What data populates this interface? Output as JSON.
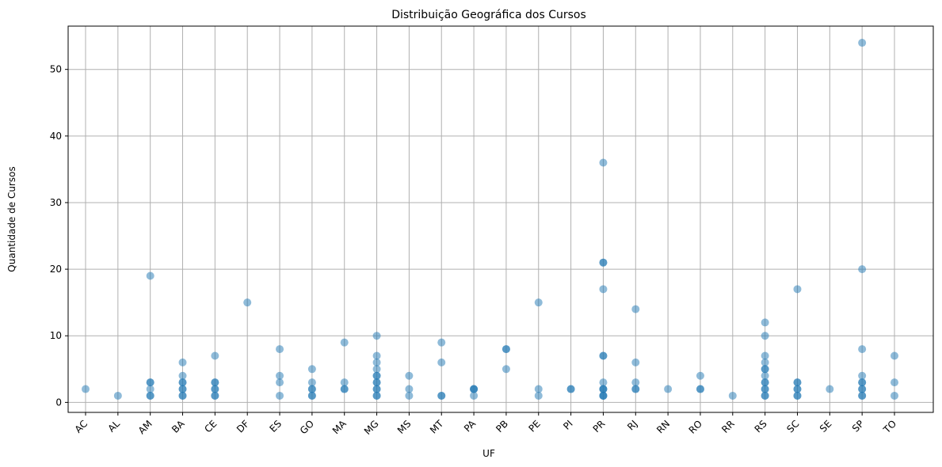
{
  "chart_data": {
    "type": "scatter",
    "title": "Distribuição Geográfica dos Cursos",
    "xlabel": "UF",
    "ylabel": "Quantidade de Cursos",
    "categories": [
      "AC",
      "AL",
      "AM",
      "BA",
      "CE",
      "DF",
      "ES",
      "GO",
      "MA",
      "MG",
      "MS",
      "MT",
      "PA",
      "PB",
      "PE",
      "PI",
      "PR",
      "RJ",
      "RN",
      "RO",
      "RR",
      "RS",
      "SC",
      "SE",
      "SP",
      "TO"
    ],
    "ylim": [
      -1.5,
      56.5
    ],
    "yticks": [
      0,
      10,
      20,
      30,
      40,
      50
    ],
    "grid": true,
    "marker_color": "#1f77b4",
    "marker_alpha": 0.5,
    "points": [
      {
        "x": "AC",
        "y": 2
      },
      {
        "x": "AL",
        "y": 1
      },
      {
        "x": "AM",
        "y": 19
      },
      {
        "x": "AM",
        "y": 3
      },
      {
        "x": "AM",
        "y": 3
      },
      {
        "x": "AM",
        "y": 2
      },
      {
        "x": "AM",
        "y": 1
      },
      {
        "x": "AM",
        "y": 1
      },
      {
        "x": "BA",
        "y": 6
      },
      {
        "x": "BA",
        "y": 4
      },
      {
        "x": "BA",
        "y": 3
      },
      {
        "x": "BA",
        "y": 3
      },
      {
        "x": "BA",
        "y": 2
      },
      {
        "x": "BA",
        "y": 2
      },
      {
        "x": "BA",
        "y": 1
      },
      {
        "x": "BA",
        "y": 1
      },
      {
        "x": "CE",
        "y": 7
      },
      {
        "x": "CE",
        "y": 3
      },
      {
        "x": "CE",
        "y": 3
      },
      {
        "x": "CE",
        "y": 2
      },
      {
        "x": "CE",
        "y": 2
      },
      {
        "x": "CE",
        "y": 1
      },
      {
        "x": "CE",
        "y": 1
      },
      {
        "x": "DF",
        "y": 15
      },
      {
        "x": "ES",
        "y": 8
      },
      {
        "x": "ES",
        "y": 4
      },
      {
        "x": "ES",
        "y": 3
      },
      {
        "x": "ES",
        "y": 1
      },
      {
        "x": "GO",
        "y": 5
      },
      {
        "x": "GO",
        "y": 3
      },
      {
        "x": "GO",
        "y": 2
      },
      {
        "x": "GO",
        "y": 2
      },
      {
        "x": "GO",
        "y": 1
      },
      {
        "x": "GO",
        "y": 1
      },
      {
        "x": "MA",
        "y": 9
      },
      {
        "x": "MA",
        "y": 3
      },
      {
        "x": "MA",
        "y": 2
      },
      {
        "x": "MA",
        "y": 2
      },
      {
        "x": "MG",
        "y": 10
      },
      {
        "x": "MG",
        "y": 7
      },
      {
        "x": "MG",
        "y": 6
      },
      {
        "x": "MG",
        "y": 5
      },
      {
        "x": "MG",
        "y": 4
      },
      {
        "x": "MG",
        "y": 4
      },
      {
        "x": "MG",
        "y": 3
      },
      {
        "x": "MG",
        "y": 3
      },
      {
        "x": "MG",
        "y": 2
      },
      {
        "x": "MG",
        "y": 2
      },
      {
        "x": "MG",
        "y": 1
      },
      {
        "x": "MG",
        "y": 1
      },
      {
        "x": "MS",
        "y": 4
      },
      {
        "x": "MS",
        "y": 2
      },
      {
        "x": "MS",
        "y": 1
      },
      {
        "x": "MT",
        "y": 9
      },
      {
        "x": "MT",
        "y": 6
      },
      {
        "x": "MT",
        "y": 1
      },
      {
        "x": "MT",
        "y": 1
      },
      {
        "x": "PA",
        "y": 2
      },
      {
        "x": "PA",
        "y": 2
      },
      {
        "x": "PA",
        "y": 2
      },
      {
        "x": "PA",
        "y": 1
      },
      {
        "x": "PB",
        "y": 8
      },
      {
        "x": "PB",
        "y": 8
      },
      {
        "x": "PB",
        "y": 5
      },
      {
        "x": "PE",
        "y": 15
      },
      {
        "x": "PE",
        "y": 2
      },
      {
        "x": "PE",
        "y": 1
      },
      {
        "x": "PI",
        "y": 2
      },
      {
        "x": "PI",
        "y": 2
      },
      {
        "x": "PR",
        "y": 36
      },
      {
        "x": "PR",
        "y": 21
      },
      {
        "x": "PR",
        "y": 21
      },
      {
        "x": "PR",
        "y": 17
      },
      {
        "x": "PR",
        "y": 7
      },
      {
        "x": "PR",
        "y": 7
      },
      {
        "x": "PR",
        "y": 3
      },
      {
        "x": "PR",
        "y": 2
      },
      {
        "x": "PR",
        "y": 2
      },
      {
        "x": "PR",
        "y": 2
      },
      {
        "x": "PR",
        "y": 1
      },
      {
        "x": "PR",
        "y": 1
      },
      {
        "x": "PR",
        "y": 1
      },
      {
        "x": "RJ",
        "y": 14
      },
      {
        "x": "RJ",
        "y": 6
      },
      {
        "x": "RJ",
        "y": 3
      },
      {
        "x": "RJ",
        "y": 2
      },
      {
        "x": "RJ",
        "y": 2
      },
      {
        "x": "RN",
        "y": 2
      },
      {
        "x": "RO",
        "y": 4
      },
      {
        "x": "RO",
        "y": 2
      },
      {
        "x": "RO",
        "y": 2
      },
      {
        "x": "RR",
        "y": 1
      },
      {
        "x": "RS",
        "y": 12
      },
      {
        "x": "RS",
        "y": 10
      },
      {
        "x": "RS",
        "y": 7
      },
      {
        "x": "RS",
        "y": 6
      },
      {
        "x": "RS",
        "y": 5
      },
      {
        "x": "RS",
        "y": 5
      },
      {
        "x": "RS",
        "y": 4
      },
      {
        "x": "RS",
        "y": 3
      },
      {
        "x": "RS",
        "y": 3
      },
      {
        "x": "RS",
        "y": 2
      },
      {
        "x": "RS",
        "y": 2
      },
      {
        "x": "RS",
        "y": 1
      },
      {
        "x": "RS",
        "y": 1
      },
      {
        "x": "SC",
        "y": 17
      },
      {
        "x": "SC",
        "y": 3
      },
      {
        "x": "SC",
        "y": 3
      },
      {
        "x": "SC",
        "y": 2
      },
      {
        "x": "SC",
        "y": 2
      },
      {
        "x": "SC",
        "y": 1
      },
      {
        "x": "SC",
        "y": 1
      },
      {
        "x": "SE",
        "y": 2
      },
      {
        "x": "SP",
        "y": 54
      },
      {
        "x": "SP",
        "y": 20
      },
      {
        "x": "SP",
        "y": 8
      },
      {
        "x": "SP",
        "y": 4
      },
      {
        "x": "SP",
        "y": 3
      },
      {
        "x": "SP",
        "y": 3
      },
      {
        "x": "SP",
        "y": 2
      },
      {
        "x": "SP",
        "y": 2
      },
      {
        "x": "SP",
        "y": 1
      },
      {
        "x": "SP",
        "y": 1
      },
      {
        "x": "TO",
        "y": 7
      },
      {
        "x": "TO",
        "y": 3
      },
      {
        "x": "TO",
        "y": 1
      }
    ]
  }
}
